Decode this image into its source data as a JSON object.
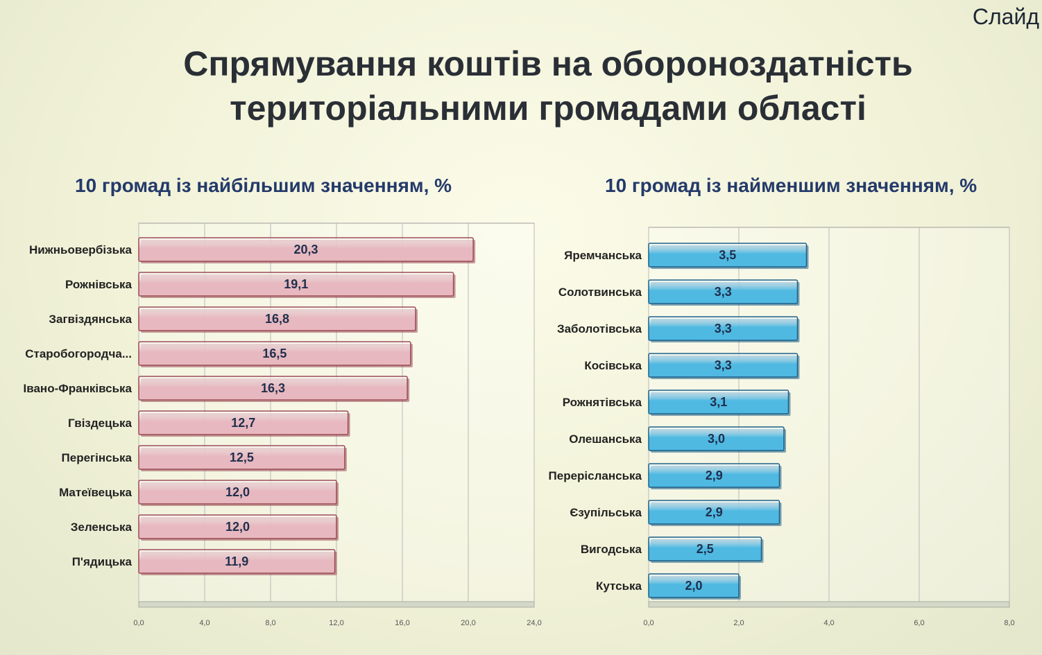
{
  "slide_label": "Слайд",
  "title": {
    "line1": "Спрямування коштів на обороноздатність",
    "line2": "територіальними громадами області"
  },
  "chart_data": [
    {
      "type": "bar",
      "orientation": "horizontal",
      "title": "10 громад із найбільшим значенням, %",
      "categories": [
        "Нижньовербізька",
        "Рожнівська",
        "Загвіздянська",
        "Старобогородча...",
        "Івано-Франківська",
        "Гвіздецька",
        "Перегінська",
        "Матеївецька",
        "Зеленська",
        "П'ядицька"
      ],
      "values": [
        20.3,
        19.1,
        16.8,
        16.5,
        16.3,
        12.7,
        12.5,
        12.0,
        12.0,
        11.9
      ],
      "value_labels": [
        "20,3",
        "19,1",
        "16,8",
        "16,5",
        "16,3",
        "12,7",
        "12,5",
        "12,0",
        "12,0",
        "11,9"
      ],
      "xlim": [
        0,
        24
      ],
      "ticks": [
        0,
        4,
        8,
        12,
        16,
        20,
        24
      ],
      "tick_labels": [
        "0,0",
        "4,0",
        "8,0",
        "12,0",
        "16,0",
        "20,0",
        "24,0"
      ],
      "grid": true,
      "bar_color": "#e7b8bf",
      "bar_stroke": "#9a4a55"
    },
    {
      "type": "bar",
      "orientation": "horizontal",
      "title": "10 громад із найменшим значенням, %",
      "categories": [
        "Яремчанська",
        "Солотвинська",
        "Заболотівська",
        "Косівська",
        "Рожнятівська",
        "Олешанська",
        "Перерісланська",
        "Єзупільська",
        "Вигодська",
        "Кутська"
      ],
      "values": [
        3.5,
        3.3,
        3.3,
        3.3,
        3.1,
        3.0,
        2.9,
        2.9,
        2.5,
        2.0
      ],
      "value_labels": [
        "3,5",
        "3,3",
        "3,3",
        "3,3",
        "3,1",
        "3,0",
        "2,9",
        "2,9",
        "2,5",
        "2,0"
      ],
      "xlim": [
        0,
        8
      ],
      "ticks": [
        0,
        2,
        4,
        6,
        8
      ],
      "tick_labels": [
        "0,0",
        "2,0",
        "4,0",
        "6,0",
        "8,0"
      ],
      "grid": true,
      "bar_color": "#4fb9e2",
      "bar_stroke": "#1d5f86"
    }
  ]
}
